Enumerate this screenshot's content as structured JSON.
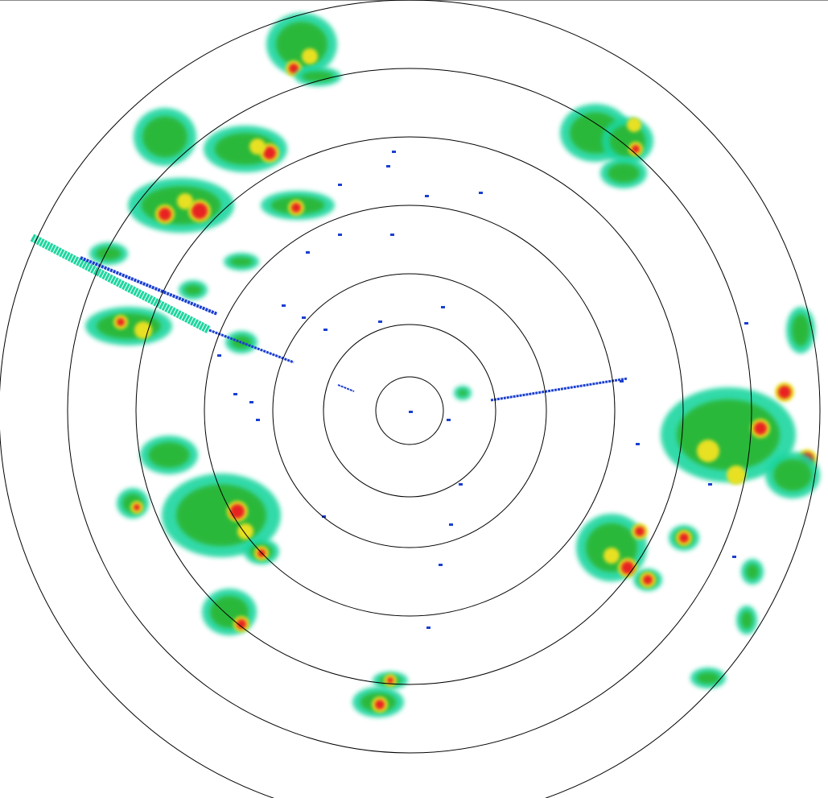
{
  "display": {
    "type": "radar-ppi",
    "range_ring_count": 7,
    "background_color": "#ffffff",
    "ring_color": "#000000"
  },
  "reflectivity_palette": {
    "weak": "#1a3fd1",
    "light": "#1fd6a0",
    "moderate": "#2bb83a",
    "heavy": "#e8e020",
    "intense": "#e82020"
  }
}
